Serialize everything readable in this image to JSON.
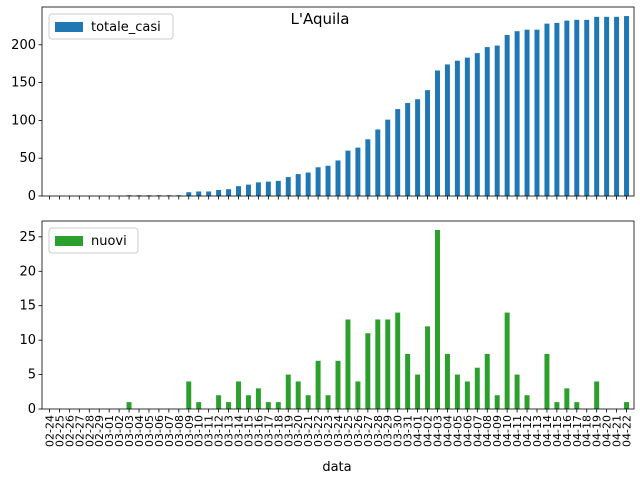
{
  "chart_data": {
    "title": "L'Aquila",
    "xlabel": "data",
    "categories": [
      "02-24",
      "02-25",
      "02-26",
      "02-27",
      "02-28",
      "02-29",
      "03-01",
      "03-02",
      "03-03",
      "03-04",
      "03-05",
      "03-06",
      "03-07",
      "03-08",
      "03-09",
      "03-10",
      "03-11",
      "03-12",
      "03-13",
      "03-14",
      "03-15",
      "03-16",
      "03-17",
      "03-18",
      "03-19",
      "03-20",
      "03-21",
      "03-22",
      "03-23",
      "03-24",
      "03-25",
      "03-26",
      "03-27",
      "03-28",
      "03-29",
      "03-30",
      "03-31",
      "04-01",
      "04-02",
      "04-03",
      "04-04",
      "04-05",
      "04-06",
      "04-07",
      "04-08",
      "04-09",
      "04-10",
      "04-11",
      "04-12",
      "04-13",
      "04-14",
      "04-15",
      "04-16",
      "04-17",
      "04-18",
      "04-19",
      "04-20",
      "04-21",
      "04-22"
    ],
    "panels": [
      {
        "type": "bar",
        "series_name": "totale_casi",
        "color": "#1f77b4",
        "ylim": [
          0,
          250
        ],
        "yticks": [
          0,
          50,
          100,
          150,
          200
        ],
        "legend": "top-left",
        "values": [
          0,
          0,
          0,
          0,
          0,
          0,
          0,
          0,
          1,
          1,
          1,
          1,
          1,
          1,
          5,
          6,
          6,
          8,
          9,
          13,
          15,
          18,
          19,
          20,
          25,
          29,
          31,
          38,
          40,
          47,
          60,
          64,
          75,
          88,
          101,
          115,
          123,
          128,
          140,
          166,
          174,
          179,
          183,
          189,
          197,
          199,
          213,
          218,
          220,
          220,
          228,
          229,
          232,
          233,
          233,
          237,
          237,
          237,
          238
        ]
      },
      {
        "type": "bar",
        "series_name": "nuovi",
        "color": "#2ca02c",
        "ylim": [
          0,
          27.3
        ],
        "yticks": [
          0,
          5,
          10,
          15,
          20,
          25
        ],
        "legend": "top-left",
        "values": [
          0,
          0,
          0,
          0,
          0,
          0,
          0,
          0,
          1,
          0,
          0,
          0,
          0,
          0,
          4,
          1,
          0,
          2,
          1,
          4,
          2,
          3,
          1,
          1,
          5,
          4,
          2,
          7,
          2,
          7,
          13,
          4,
          11,
          13,
          13,
          14,
          8,
          5,
          12,
          26,
          8,
          5,
          4,
          6,
          8,
          2,
          14,
          5,
          2,
          0,
          8,
          1,
          3,
          1,
          0,
          4,
          0,
          0,
          1
        ]
      }
    ]
  }
}
